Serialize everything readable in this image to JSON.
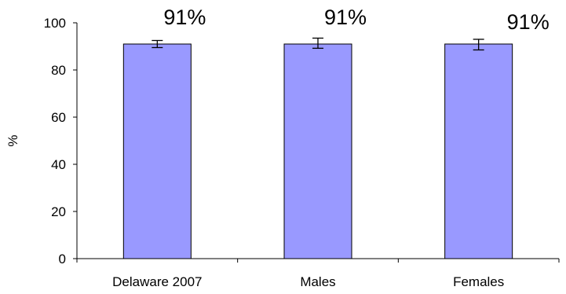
{
  "chart_data": {
    "type": "bar",
    "title": "",
    "xlabel": "",
    "ylabel": "%",
    "ylim": [
      0,
      100
    ],
    "yticks": [
      0,
      20,
      40,
      60,
      80,
      100
    ],
    "yticks_labels": [
      "0",
      "20",
      "40",
      "60",
      "80",
      "100"
    ],
    "grid": false,
    "legend": "none",
    "categories": [
      "Delaware 2007",
      "Males",
      "Females"
    ],
    "values": [
      91,
      91,
      91
    ],
    "error_bars": [
      {
        "low": 89.5,
        "high": 92.5
      },
      {
        "low": 89.2,
        "high": 93.5
      },
      {
        "low": 88.5,
        "high": 93.0
      }
    ],
    "data_labels": [
      "91%",
      "91%",
      "91%"
    ],
    "colors": {
      "bar_fill": "#9999ff",
      "bar_stroke": "#000000",
      "axis": "#000000"
    }
  }
}
